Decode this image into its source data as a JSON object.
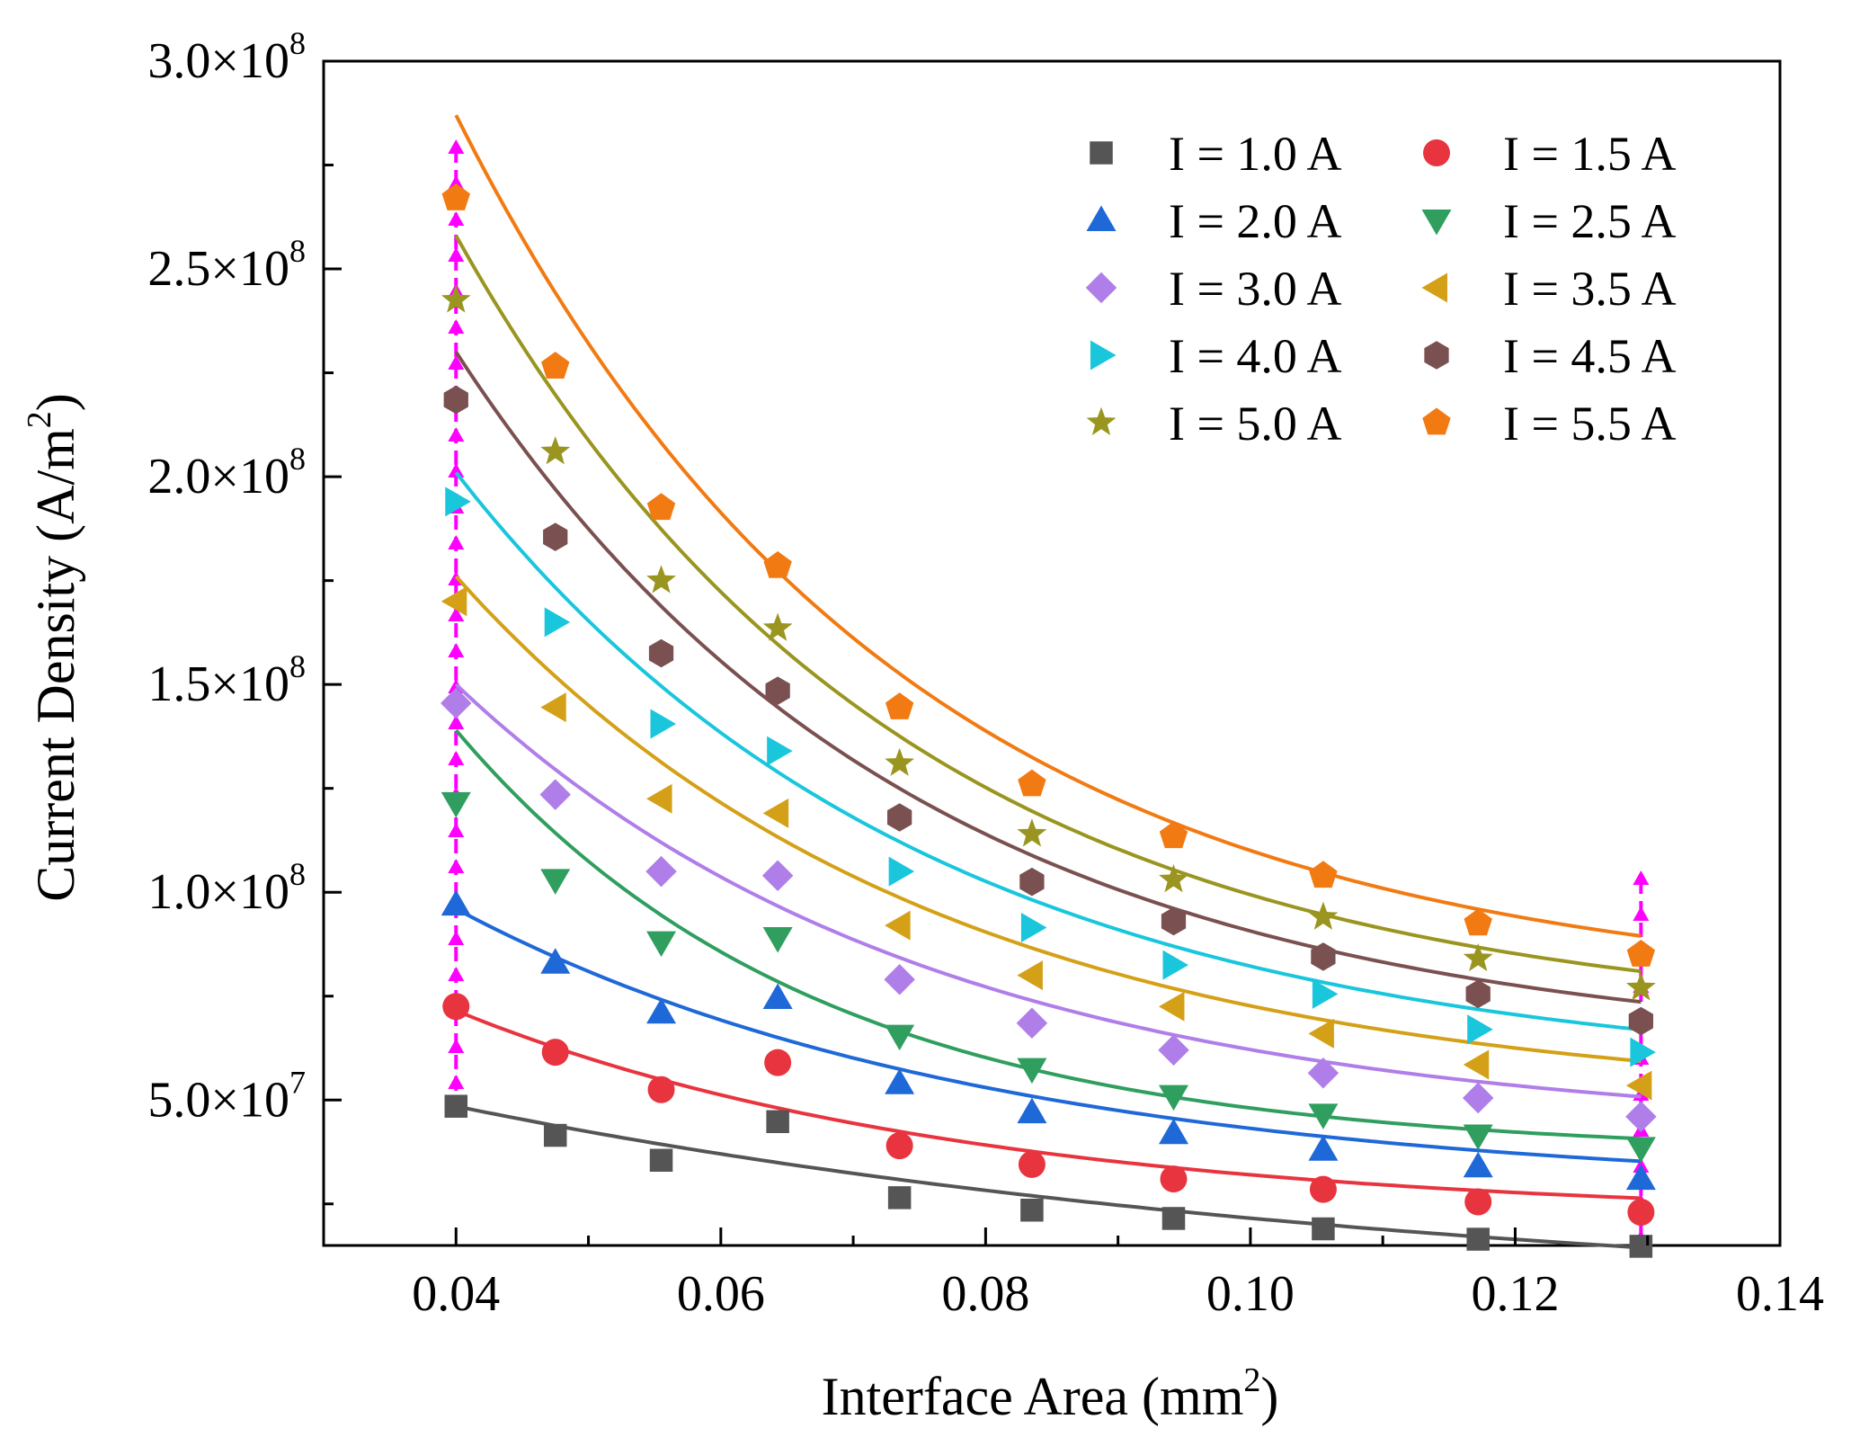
{
  "chart_data": {
    "type": "scatter",
    "title": "",
    "xlabel": {
      "main": "Interface Area (mm",
      "sup": "2",
      "end": ")"
    },
    "ylabel": {
      "main": "Current Density (A/m",
      "sup": "2",
      "end": ")"
    },
    "xlim": [
      0.03,
      0.14
    ],
    "ylim": [
      15000000,
      300000000
    ],
    "xticks": [
      0.04,
      0.06,
      0.08,
      0.1,
      0.12,
      0.14
    ],
    "xtick_labels": [
      "0.04",
      "0.06",
      "0.08",
      "0.10",
      "0.12",
      "0.14"
    ],
    "yticks": [
      50000000,
      100000000,
      150000000,
      200000000,
      250000000,
      300000000
    ],
    "ytick_labels": [
      {
        "mant": "5.0",
        "exp": "7"
      },
      {
        "mant": "1.0",
        "exp": "8"
      },
      {
        "mant": "1.5",
        "exp": "8"
      },
      {
        "mant": "2.0",
        "exp": "8"
      },
      {
        "mant": "2.5",
        "exp": "8"
      },
      {
        "mant": "3.0",
        "exp": "8"
      }
    ],
    "times_sign": "×10",
    "legend_position": "top-right",
    "x": [
      0.04,
      0.0475,
      0.0555,
      0.0643,
      0.0735,
      0.0835,
      0.0942,
      0.1055,
      0.1172,
      0.1295
    ],
    "reference_lines": {
      "x": [
        0.04,
        0.1295
      ],
      "color": "#ff00ff",
      "style": "dashed, double-arrow"
    },
    "series": [
      {
        "name": "I = 1.0 A",
        "marker": "square",
        "color": "#555555",
        "values": [
          48500000,
          41500000,
          35500000,
          44800000,
          26500000,
          23500000,
          21500000,
          19000000,
          16500000,
          14800000
        ],
        "fit": {
          "a": 48500000,
          "k": 13.5,
          "c": 0
        }
      },
      {
        "name": "I = 1.5 A",
        "marker": "circle",
        "color": "#e8343f",
        "values": [
          72500000,
          61500000,
          52500000,
          59000000,
          39000000,
          34500000,
          31000000,
          28500000,
          25500000,
          23000000
        ],
        "fit": {
          "a": 50000000,
          "k": 26,
          "c": 21500000
        }
      },
      {
        "name": "I = 2.0 A",
        "marker": "triangle-up",
        "color": "#1f68d8",
        "values": [
          97000000,
          83000000,
          71000000,
          74500000,
          54000000,
          47000000,
          42000000,
          38000000,
          34000000,
          31000000
        ],
        "fit": {
          "a": 68000000,
          "k": 25,
          "c": 28000000
        }
      },
      {
        "name": "I = 2.5 A",
        "marker": "triangle-down",
        "color": "#2f9e5e",
        "values": [
          121500000,
          103000000,
          88000000,
          89000000,
          65500000,
          57500000,
          51000000,
          46500000,
          41500000,
          38500000
        ],
        "fit": {
          "a": 102000000,
          "k": 37,
          "c": 37000000
        }
      },
      {
        "name": "I = 3.0 A",
        "marker": "diamond",
        "color": "#b07ee8",
        "values": [
          145500000,
          123500000,
          105000000,
          104000000,
          79000000,
          68500000,
          62000000,
          56500000,
          50500000,
          46000000
        ],
        "fit": {
          "a": 108000000,
          "k": 28,
          "c": 42000000
        }
      },
      {
        "name": "I = 3.5 A",
        "marker": "triangle-left",
        "color": "#d4a017",
        "values": [
          170000000,
          144500000,
          122500000,
          119000000,
          92000000,
          80000000,
          72500000,
          66000000,
          58500000,
          53500000
        ],
        "fit": {
          "a": 127000000,
          "k": 28,
          "c": 49000000
        }
      },
      {
        "name": "I = 4.0 A",
        "marker": "triangle-right",
        "color": "#19c6dc",
        "values": [
          194000000,
          165000000,
          140500000,
          134000000,
          105000000,
          91500000,
          82500000,
          75500000,
          67000000,
          61500000
        ],
        "fit": {
          "a": 146000000,
          "k": 28,
          "c": 55000000
        }
      },
      {
        "name": "I = 4.5 A",
        "marker": "hexagon",
        "color": "#7a5050",
        "values": [
          218500000,
          185500000,
          157500000,
          148500000,
          118000000,
          102500000,
          93000000,
          84500000,
          75500000,
          69000000
        ],
        "fit": {
          "a": 169000000,
          "k": 29,
          "c": 61000000
        }
      },
      {
        "name": "I = 5.0 A",
        "marker": "star",
        "color": "#9a9520",
        "values": [
          242500000,
          206000000,
          175000000,
          163500000,
          131000000,
          114000000,
          103000000,
          94000000,
          84000000,
          77000000
        ],
        "fit": {
          "a": 190000000,
          "k": 30,
          "c": 68000000
        }
      },
      {
        "name": "I = 5.5 A",
        "marker": "pentagon",
        "color": "#f27a12",
        "values": [
          267000000,
          226500000,
          192500000,
          178500000,
          144500000,
          126000000,
          113500000,
          104000000,
          92500000,
          85000000
        ],
        "fit": {
          "a": 212000000,
          "k": 30,
          "c": 75000000
        }
      }
    ]
  }
}
